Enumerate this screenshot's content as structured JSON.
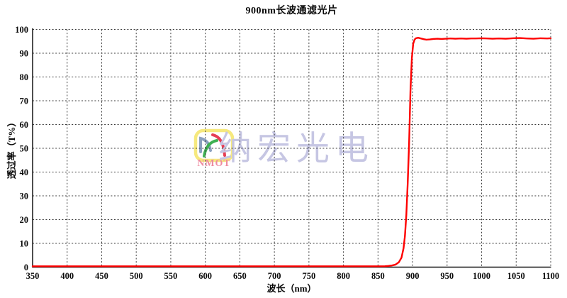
{
  "chart_data": {
    "type": "line",
    "title": "900nm长波通滤光片",
    "xlabel": "波长（nm）",
    "ylabel": "透过率（T%）",
    "xlim": [
      350,
      1100
    ],
    "ylim": [
      0,
      100
    ],
    "xticks": [
      350,
      400,
      450,
      500,
      550,
      600,
      650,
      700,
      750,
      800,
      850,
      900,
      950,
      1000,
      1050,
      1100
    ],
    "yticks": [
      0,
      10,
      20,
      30,
      40,
      50,
      60,
      70,
      80,
      90,
      100
    ],
    "grid": true,
    "line_color": "#fe0000",
    "series": [
      {
        "name": "transmittance",
        "points": [
          [
            350,
            0.35
          ],
          [
            400,
            0.35
          ],
          [
            450,
            0.35
          ],
          [
            500,
            0.35
          ],
          [
            550,
            0.35
          ],
          [
            600,
            0.35
          ],
          [
            650,
            0.35
          ],
          [
            700,
            0.35
          ],
          [
            750,
            0.35
          ],
          [
            800,
            0.35
          ],
          [
            830,
            0.35
          ],
          [
            850,
            0.35
          ],
          [
            860,
            0.4
          ],
          [
            865,
            0.5
          ],
          [
            870,
            0.7
          ],
          [
            875,
            1.0
          ],
          [
            880,
            2.0
          ],
          [
            884,
            4.0
          ],
          [
            887,
            8.0
          ],
          [
            889,
            13
          ],
          [
            891,
            22
          ],
          [
            893,
            35
          ],
          [
            895,
            52
          ],
          [
            897,
            74
          ],
          [
            899,
            88
          ],
          [
            901,
            94.0
          ],
          [
            903,
            95.8
          ],
          [
            905,
            96.3
          ],
          [
            908,
            96.5
          ],
          [
            912,
            96.2
          ],
          [
            916,
            95.9
          ],
          [
            920,
            95.7
          ],
          [
            925,
            95.8
          ],
          [
            930,
            96.0
          ],
          [
            936,
            96.1
          ],
          [
            942,
            96.0
          ],
          [
            948,
            96.1
          ],
          [
            955,
            96.2
          ],
          [
            962,
            96.1
          ],
          [
            970,
            96.2
          ],
          [
            978,
            96.1
          ],
          [
            985,
            96.2
          ],
          [
            992,
            96.2
          ],
          [
            1000,
            96.3
          ],
          [
            1008,
            96.2
          ],
          [
            1016,
            96.1
          ],
          [
            1025,
            96.2
          ],
          [
            1035,
            96.1
          ],
          [
            1045,
            96.3
          ],
          [
            1055,
            96.4
          ],
          [
            1065,
            96.2
          ],
          [
            1075,
            96.1
          ],
          [
            1085,
            96.3
          ],
          [
            1095,
            96.2
          ],
          [
            1100,
            96.3
          ]
        ]
      }
    ]
  },
  "watermark": {
    "logo_text": "NMOT",
    "brand_text": "纳宏光电",
    "brand_color": "#c6c6e3",
    "logo_text_color": "#ee8ba0",
    "logo_border_color": "#f6e97e",
    "arc_colors": [
      "#8ca1bf",
      "#3eb152",
      "#e63e55"
    ]
  },
  "colors": {
    "background": "#ffffff",
    "grid": "#3d3d3d",
    "axis": "#141414",
    "tick_text": "#0a0a0a"
  }
}
